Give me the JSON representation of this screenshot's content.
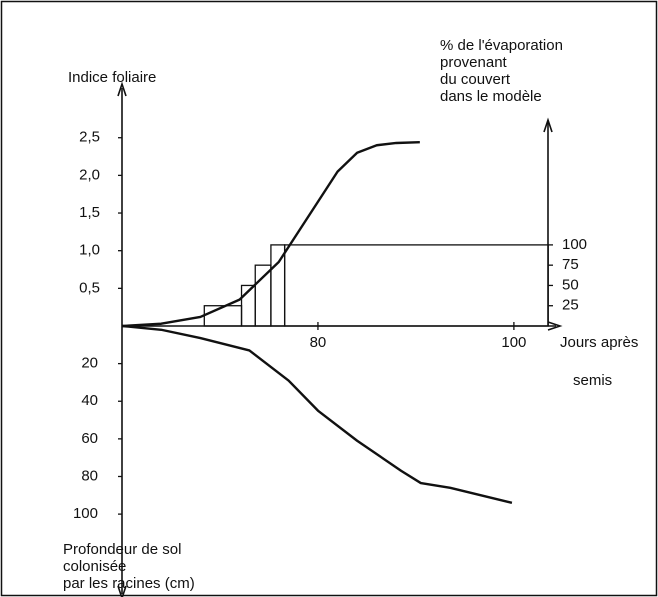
{
  "chart_data": {
    "type": "line",
    "ylabel": "Indice foliaire",
    "y2label": [
      "% de l'évaporation",
      "provenant",
      "du couvert",
      "dans le modèle"
    ],
    "xlabel": [
      "Jours après",
      "semis"
    ],
    "depth_label": [
      "Profondeur de sol",
      "colonisée",
      "par les racines (cm)"
    ],
    "xlim": [
      60,
      104.4
    ],
    "xticks": [
      80,
      100
    ],
    "ylim": [
      0,
      3.2
    ],
    "yticks": [
      {
        "value": 0.5,
        "label": "0,5"
      },
      {
        "value": 1.0,
        "label": "1,0"
      },
      {
        "value": 1.5,
        "label": "1,5"
      },
      {
        "value": 2.0,
        "label": "2,0"
      },
      {
        "value": 2.5,
        "label": "2,5"
      }
    ],
    "y2lim": [
      0,
      254
    ],
    "y2ticks": [
      25,
      50,
      75,
      100
    ],
    "depthlim": [
      0,
      143
    ],
    "depthticks": [
      20,
      40,
      60,
      80,
      100
    ],
    "series": [
      {
        "type": "line",
        "axis": "y",
        "color": "#111111",
        "x": [
          60,
          64,
          68,
          72,
          76,
          78,
          80,
          82,
          84,
          86,
          88,
          90.4
        ],
        "values": [
          0,
          0.03,
          0.12,
          0.35,
          0.85,
          1.25,
          1.65,
          2.05,
          2.3,
          2.4,
          2.43,
          2.44
        ]
      },
      {
        "type": "step",
        "axis": "y2",
        "color": "#111111",
        "edges": [
          68.4,
          72.2,
          73.6,
          75.2,
          76.6,
          103.5
        ],
        "values": [
          25,
          50,
          75,
          100,
          100
        ]
      },
      {
        "type": "line",
        "axis": "depth",
        "color": "#111111",
        "x": [
          60,
          64,
          68,
          73,
          77,
          80,
          84,
          88.5,
          90.5,
          93.5,
          99.8
        ],
        "values": [
          0,
          2,
          6.4,
          13,
          29,
          45,
          61,
          77,
          83.5,
          86,
          94
        ]
      }
    ]
  }
}
